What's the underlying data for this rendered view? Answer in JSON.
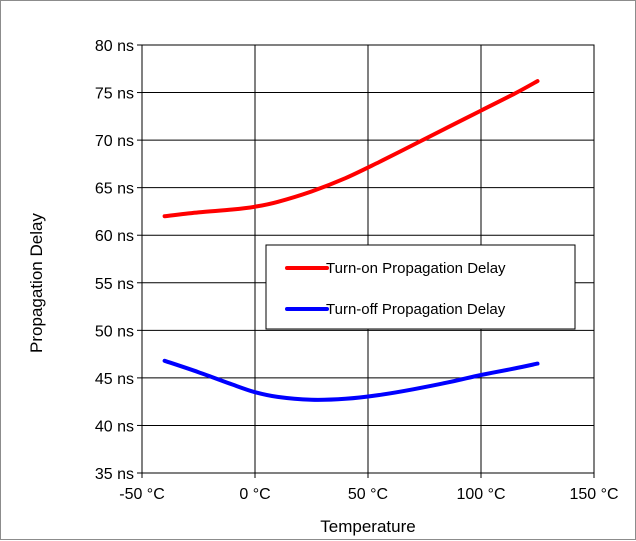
{
  "chart_data": {
    "type": "line",
    "title": "",
    "xlabel": "Temperature",
    "ylabel": "Propagation Delay",
    "xlim": [
      -50,
      150
    ],
    "ylim": [
      35,
      80
    ],
    "x_ticks": [
      -50,
      0,
      50,
      100,
      150
    ],
    "x_tick_labels": [
      "-50 °C",
      "0 °C",
      "50 °C",
      "100 °C",
      "150 °C"
    ],
    "y_ticks": [
      35,
      40,
      45,
      50,
      55,
      60,
      65,
      70,
      75,
      80
    ],
    "y_tick_labels": [
      "35 ns",
      "40 ns",
      "45 ns",
      "50 ns",
      "55 ns",
      "60 ns",
      "65 ns",
      "70 ns",
      "75 ns",
      "80 ns"
    ],
    "grid": true,
    "legend_position": "center-right",
    "series": [
      {
        "name": "Turn-on Propagation Delay",
        "color": "#ff0000",
        "x": [
          -40,
          -25,
          -10,
          0,
          10,
          25,
          40,
          55,
          70,
          85,
          100,
          115,
          125
        ],
        "y": [
          62.0,
          62.4,
          62.7,
          63.0,
          63.5,
          64.6,
          66.0,
          67.7,
          69.5,
          71.3,
          73.1,
          74.9,
          76.2
        ]
      },
      {
        "name": "Turn-off Propagation Delay",
        "color": "#0000ff",
        "x": [
          -40,
          -25,
          -10,
          0,
          10,
          25,
          40,
          55,
          70,
          85,
          100,
          115,
          125
        ],
        "y": [
          46.8,
          45.6,
          44.3,
          43.5,
          43.0,
          42.7,
          42.8,
          43.2,
          43.8,
          44.5,
          45.3,
          46.0,
          46.5
        ]
      }
    ]
  }
}
